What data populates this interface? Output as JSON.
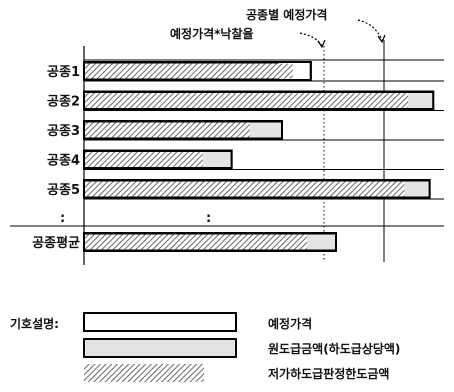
{
  "annotations": {
    "per_trade_estimate": "공종별 예정가격",
    "estimate_times_rate": "예정가격*낙찰율"
  },
  "rows": [
    {
      "label": "공종1",
      "estimate": 0.63,
      "original": 0.54,
      "limit": 0.58
    },
    {
      "label": "공종2",
      "estimate": 0.97,
      "original": 0.97,
      "limit": 0.9
    },
    {
      "label": "공종3",
      "estimate": 0.55,
      "original": 0.55,
      "limit": 0.46
    },
    {
      "label": "공종4",
      "estimate": 0.41,
      "original": 0.41,
      "limit": 0.33
    },
    {
      "label": "공종5",
      "estimate": 0.96,
      "original": 0.96,
      "limit": 0.89
    }
  ],
  "ellipsis": [
    ":",
    ":"
  ],
  "average": {
    "label": "공종평균",
    "estimate": 0.7,
    "original": 0.7,
    "limit": 0.62
  },
  "legend": {
    "title": "기호설명:",
    "items": [
      {
        "label": "예정가격"
      },
      {
        "label": "원도급금액(하도급상당액)"
      },
      {
        "label": "저가하도급판정한도금액"
      }
    ]
  }
}
